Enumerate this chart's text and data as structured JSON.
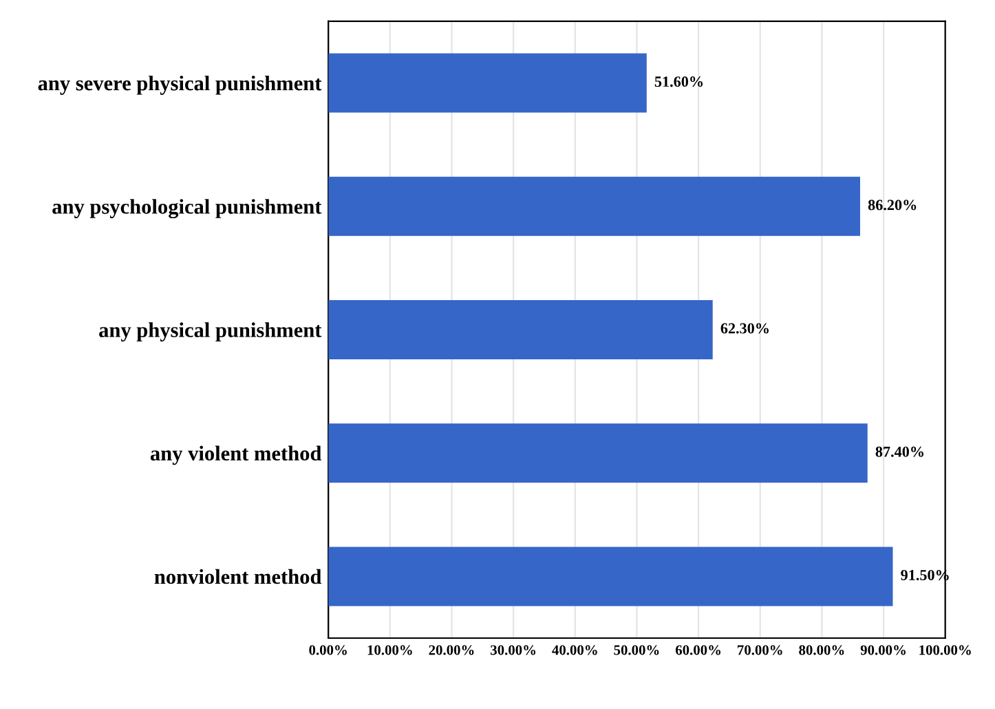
{
  "chart_data": {
    "type": "bar",
    "orientation": "horizontal",
    "categories": [
      "any severe physical punishment",
      "any psychological punishment",
      "any physical punishment",
      "any violent method",
      "nonviolent method"
    ],
    "values": [
      51.6,
      86.2,
      62.3,
      87.4,
      91.5
    ],
    "value_labels": [
      "51.60%",
      "86.20%",
      "62.30%",
      "87.40%",
      "91.50%"
    ],
    "color": "#3566c8",
    "xlim": [
      0,
      100
    ],
    "xticks": [
      {
        "value": 0,
        "label": "0.00%"
      },
      {
        "value": 10,
        "label": "10.00%"
      },
      {
        "value": 20,
        "label": "20.00%"
      },
      {
        "value": 30,
        "label": "30.00%"
      },
      {
        "value": 40,
        "label": "40.00%"
      },
      {
        "value": 50,
        "label": "50.00%"
      },
      {
        "value": 60,
        "label": "60.00%"
      },
      {
        "value": 70,
        "label": "70.00%"
      },
      {
        "value": 80,
        "label": "80.00%"
      },
      {
        "value": 90,
        "label": "90.00%"
      },
      {
        "value": 100,
        "label": "100.00%"
      }
    ],
    "grid": "x",
    "legend": false
  }
}
